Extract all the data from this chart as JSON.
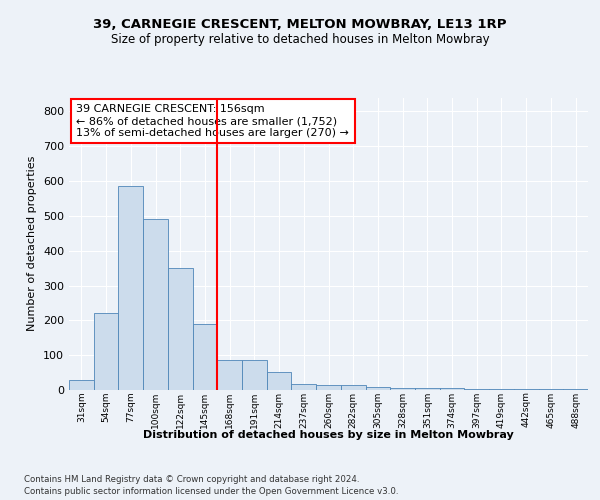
{
  "title1": "39, CARNEGIE CRESCENT, MELTON MOWBRAY, LE13 1RP",
  "title2": "Size of property relative to detached houses in Melton Mowbray",
  "xlabel": "Distribution of detached houses by size in Melton Mowbray",
  "ylabel": "Number of detached properties",
  "bin_labels": [
    "31sqm",
    "54sqm",
    "77sqm",
    "100sqm",
    "122sqm",
    "145sqm",
    "168sqm",
    "191sqm",
    "214sqm",
    "237sqm",
    "260sqm",
    "282sqm",
    "305sqm",
    "328sqm",
    "351sqm",
    "374sqm",
    "397sqm",
    "419sqm",
    "442sqm",
    "465sqm",
    "488sqm"
  ],
  "bar_heights": [
    30,
    220,
    585,
    490,
    350,
    190,
    85,
    85,
    52,
    18,
    15,
    13,
    8,
    5,
    5,
    5,
    3,
    3,
    2,
    2,
    2
  ],
  "bar_color": "#ccdcec",
  "bar_edge_color": "#4e86b8",
  "annotation_text": "39 CARNEGIE CRESCENT: 156sqm\n← 86% of detached houses are smaller (1,752)\n13% of semi-detached houses are larger (270) →",
  "annotation_box_color": "white",
  "annotation_box_edge": "red",
  "vline_color": "red",
  "ylim": [
    0,
    840
  ],
  "yticks": [
    0,
    100,
    200,
    300,
    400,
    500,
    600,
    700,
    800
  ],
  "footer1": "Contains HM Land Registry data © Crown copyright and database right 2024.",
  "footer2": "Contains public sector information licensed under the Open Government Licence v3.0.",
  "bg_color": "#edf2f8",
  "plot_bg_color": "#edf2f8",
  "grid_color": "#ffffff",
  "vline_x_index": 6
}
